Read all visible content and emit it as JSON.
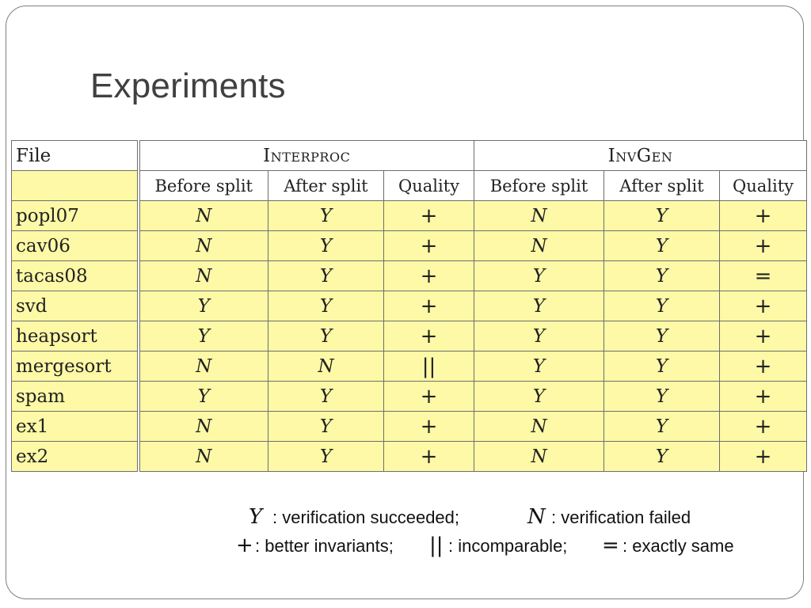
{
  "slide": {
    "title": "Experiments"
  },
  "table": {
    "file_header": "File",
    "groups": [
      "Interproc",
      "InvGen"
    ],
    "subheaders": [
      "Before split",
      "After split",
      "Quality",
      "Before split",
      "After split",
      "Quality"
    ],
    "rows": [
      {
        "file": "popl07",
        "cells": [
          "N",
          "Y",
          "+",
          "N",
          "Y",
          "+"
        ]
      },
      {
        "file": "cav06",
        "cells": [
          "N",
          "Y",
          "+",
          "N",
          "Y",
          "+"
        ]
      },
      {
        "file": "tacas08",
        "cells": [
          "N",
          "Y",
          "+",
          "Y",
          "Y",
          "="
        ]
      },
      {
        "file": "svd",
        "cells": [
          "Y",
          "Y",
          "+",
          "Y",
          "Y",
          "+"
        ]
      },
      {
        "file": "heapsort",
        "cells": [
          "Y",
          "Y",
          "+",
          "Y",
          "Y",
          "+"
        ]
      },
      {
        "file": "mergesort",
        "cells": [
          "N",
          "N",
          "||",
          "Y",
          "Y",
          "+"
        ]
      },
      {
        "file": "spam",
        "cells": [
          "Y",
          "Y",
          "+",
          "Y",
          "Y",
          "+"
        ]
      },
      {
        "file": "ex1",
        "cells": [
          "N",
          "Y",
          "+",
          "N",
          "Y",
          "+"
        ]
      },
      {
        "file": "ex2",
        "cells": [
          "N",
          "Y",
          "+",
          "N",
          "Y",
          "+"
        ]
      }
    ]
  },
  "legend": {
    "y_symbol": "Y",
    "y_text": ": verification succeeded;",
    "n_symbol": "N",
    "n_text": ": verification failed",
    "plus_symbol": "+",
    "plus_text": ": better invariants;",
    "incomparable_symbol": "||",
    "incomparable_text": ": incomparable;",
    "equal_symbol": "=",
    "equal_text": ": exactly same"
  },
  "colors": {
    "row_highlight": "#fdf9a6",
    "title_text": "#404040",
    "frame_border": "#7f7f7f"
  }
}
